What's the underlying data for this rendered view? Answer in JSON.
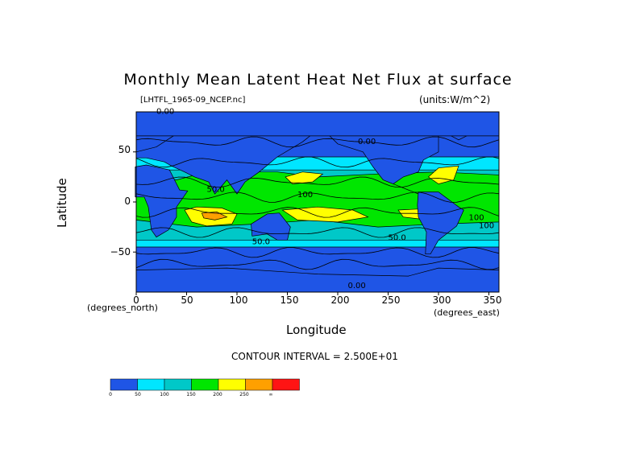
{
  "chart_data": {
    "type": "heatmap",
    "title": "Monthly Mean Latent Heat Net Flux at surface",
    "file_label": "[LHTFL_1965-09_NCEP.nc]",
    "units_label": "(units:W/m^2)",
    "xlabel": "Longitude",
    "ylabel": "Latitude",
    "x_units_label": "(degrees_east)",
    "y_units_label": "(degrees_north)",
    "x_ticks": [
      "0",
      "50",
      "100",
      "150",
      "200",
      "250",
      "300",
      "350"
    ],
    "y_ticks": [
      "50",
      "0",
      "−50"
    ],
    "xlim": [
      0,
      360
    ],
    "ylim": [
      -90,
      90
    ],
    "contour_interval_text": "CONTOUR INTERVAL = 2.500E+01",
    "contour_labels": [
      "0.00",
      "0.00",
      "50.0",
      "100",
      "50.0",
      "0.00",
      "100",
      "50.0",
      "100"
    ],
    "colorbar": {
      "ticks": [
        "0",
        "50",
        "100",
        "150",
        "200",
        "250",
        "∞"
      ],
      "colors": [
        "#1f55e6",
        "#00e6ff",
        "#00c8c8",
        "#00e600",
        "#ffff00",
        "#ffa000",
        "#ff1414"
      ]
    }
  }
}
